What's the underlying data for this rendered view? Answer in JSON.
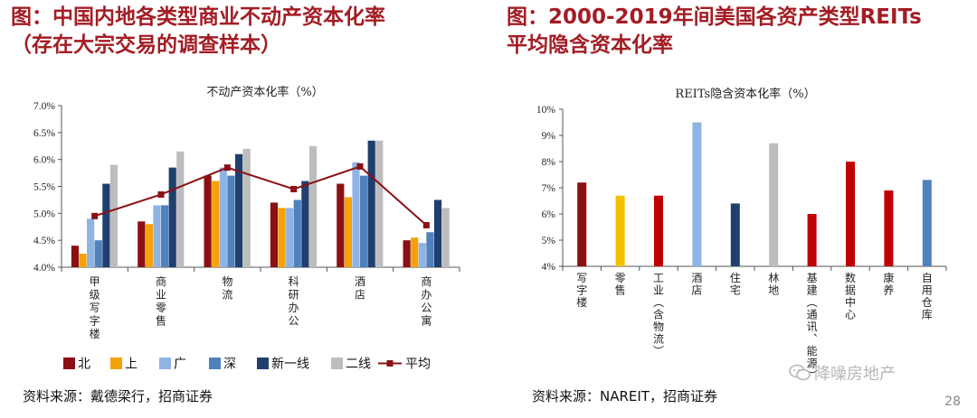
{
  "titles": {
    "left_line1": "图：中国内地各类型商业不动产资本化率",
    "left_line2": "（存在大宗交易的调查样本）",
    "right_line1": "图：2000-2019年间美国各资产类型REITs",
    "right_line2": "平均隐含资本化率"
  },
  "source_left": "资料来源：戴德梁行，招商证券",
  "source_right": "资料来源：NAREIT，招商证券",
  "page_number": "28",
  "watermark": "降噪房地产",
  "chart_data": [
    {
      "type": "bar",
      "title": "不动产资本化率（%）",
      "ylim": [
        4.0,
        7.0
      ],
      "yticks": [
        "4.0%",
        "4.5%",
        "5.0%",
        "5.5%",
        "6.0%",
        "6.5%",
        "7.0%"
      ],
      "categories": [
        "甲级写字楼",
        "商业零售",
        "物流",
        "科研办公",
        "酒店",
        "商办公寓"
      ],
      "series": [
        {
          "name": "北",
          "color": "#8b1014",
          "values": [
            4.4,
            4.85,
            5.7,
            5.2,
            5.55,
            4.5
          ]
        },
        {
          "name": "上",
          "color": "#f5a10a",
          "values": [
            4.25,
            4.8,
            5.6,
            5.1,
            5.3,
            4.55
          ]
        },
        {
          "name": "广",
          "color": "#8fb4e3",
          "values": [
            4.9,
            5.15,
            5.85,
            5.1,
            5.95,
            4.45
          ]
        },
        {
          "name": "深",
          "color": "#4f81bd",
          "values": [
            4.5,
            5.15,
            5.7,
            5.25,
            5.7,
            4.65
          ]
        },
        {
          "name": "新一线",
          "color": "#1f3f6e",
          "values": [
            5.55,
            5.85,
            6.1,
            5.6,
            6.35,
            5.25
          ]
        },
        {
          "name": "二线",
          "color": "#bdbdbd",
          "values": [
            5.9,
            6.15,
            6.2,
            6.25,
            6.35,
            5.1
          ]
        }
      ],
      "line_series": {
        "name": "平均",
        "color": "#8b1014",
        "values": [
          4.95,
          5.35,
          5.85,
          5.45,
          5.87,
          4.78
        ]
      },
      "legend_position": "bottom"
    },
    {
      "type": "bar",
      "title": "REITs隐含资本化率（%）",
      "ylim": [
        4,
        10
      ],
      "yticks": [
        "4%",
        "5%",
        "6%",
        "7%",
        "8%",
        "9%",
        "10%"
      ],
      "categories": [
        "写字楼",
        "零售",
        "工业（含物流）",
        "酒店",
        "住宅",
        "林地",
        "基建（通讯、能源）",
        "数据中心",
        "康养",
        "自用仓库"
      ],
      "values": [
        7.2,
        6.7,
        6.7,
        9.5,
        6.4,
        8.7,
        6.0,
        8.0,
        6.9,
        7.3
      ],
      "colors": [
        "#8b1014",
        "#f5c000",
        "#c00000",
        "#8fb4e3",
        "#1f3f6e",
        "#bdbdbd",
        "#c00000",
        "#c00000",
        "#c00000",
        "#4f81bd"
      ]
    }
  ]
}
